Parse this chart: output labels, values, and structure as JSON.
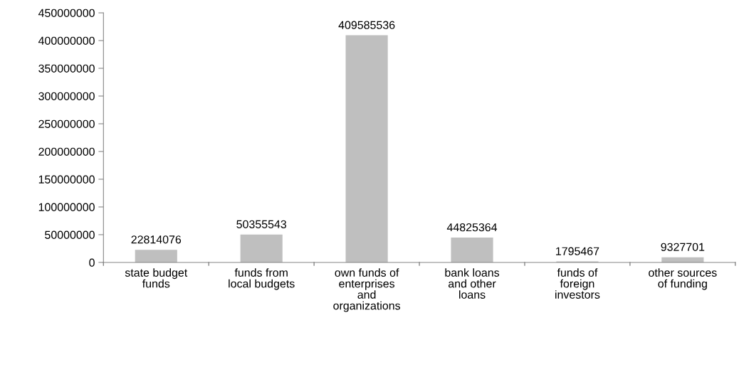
{
  "chart_data": {
    "type": "bar",
    "categories": [
      "state budget\nfunds",
      "funds from\nlocal budgets",
      "own funds of\nenterprises\nand\norganizations",
      "bank loans\nand other\nloans",
      "funds of\nforeign\ninvestors",
      "other sources\nof funding"
    ],
    "values": [
      22814076,
      50355543,
      409585536,
      44825364,
      1795467,
      9327701
    ],
    "color": "#bfbfbf",
    "data_labels": true,
    "ylim": [
      0,
      450000000
    ],
    "yticks": [
      0,
      50000000,
      100000000,
      150000000,
      200000000,
      250000000,
      300000000,
      350000000,
      400000000,
      450000000
    ],
    "grid": false,
    "legend": false
  }
}
